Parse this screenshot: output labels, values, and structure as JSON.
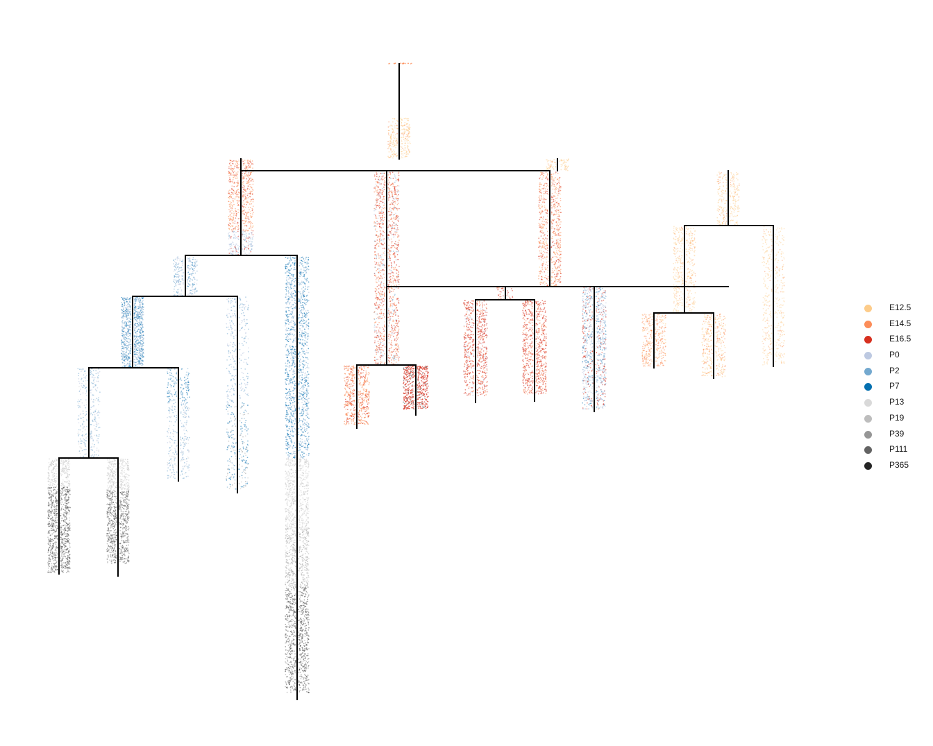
{
  "chart_data": {
    "type": "scatter",
    "title": "",
    "xlabel": "",
    "ylabel": "",
    "grid": false,
    "legend_position": "right",
    "legend": [
      {
        "label": "E12.5",
        "color": "#fdcc8a"
      },
      {
        "label": "E14.5",
        "color": "#fc8d59"
      },
      {
        "label": "E16.5",
        "color": "#d7301f"
      },
      {
        "label": "P0",
        "color": "#bdc9e1"
      },
      {
        "label": "P2",
        "color": "#74a9cf"
      },
      {
        "label": "P7",
        "color": "#0570b0"
      },
      {
        "label": "P13",
        "color": "#d9d9d9"
      },
      {
        "label": "P19",
        "color": "#bdbdbd"
      },
      {
        "label": "P39",
        "color": "#969696"
      },
      {
        "label": "P111",
        "color": "#636363"
      },
      {
        "label": "P365",
        "color": "#252525"
      }
    ],
    "tree_nodes": [
      {
        "id": "root",
        "parent": null
      },
      {
        "id": "n1",
        "parent": "root"
      },
      {
        "id": "A",
        "parent": "n1"
      },
      {
        "id": "B",
        "parent": "n1"
      },
      {
        "id": "A1",
        "parent": "A"
      },
      {
        "id": "A2",
        "parent": "A"
      },
      {
        "id": "A11",
        "parent": "A1"
      },
      {
        "id": "A12",
        "parent": "A1"
      },
      {
        "id": "A111",
        "parent": "A11"
      },
      {
        "id": "A112",
        "parent": "A11"
      },
      {
        "id": "A1111",
        "parent": "A111"
      },
      {
        "id": "A1112",
        "parent": "A111"
      },
      {
        "id": "B1",
        "parent": "B"
      },
      {
        "id": "B2",
        "parent": "B"
      },
      {
        "id": "B3",
        "parent": "B"
      },
      {
        "id": "B11",
        "parent": "B1"
      },
      {
        "id": "B12",
        "parent": "B1"
      },
      {
        "id": "B2a",
        "parent": "B2"
      },
      {
        "id": "B2b",
        "parent": "B2"
      },
      {
        "id": "B2a1",
        "parent": "B2a"
      },
      {
        "id": "B2a2",
        "parent": "B2a"
      },
      {
        "id": "B3a",
        "parent": "B3"
      },
      {
        "id": "B3b",
        "parent": "B3"
      },
      {
        "id": "B3a1",
        "parent": "B3a"
      },
      {
        "id": "B3a2",
        "parent": "B3a"
      }
    ]
  }
}
